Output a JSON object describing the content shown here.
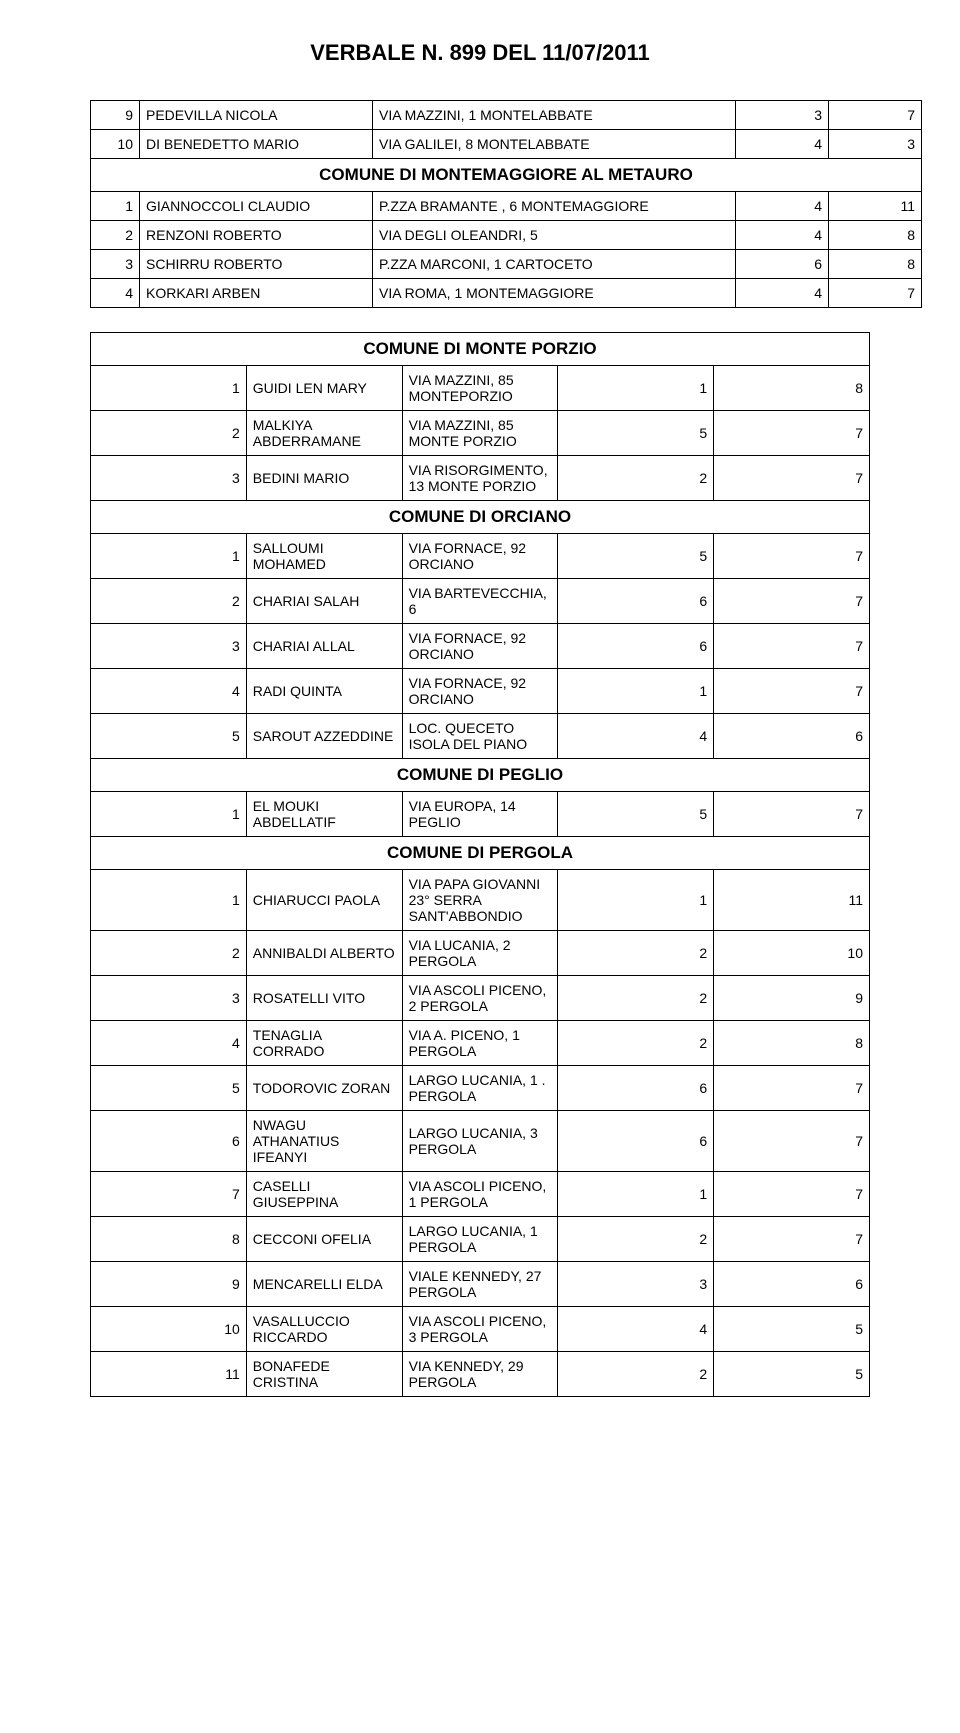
{
  "doc_title": "VERBALE N. 899 DEL 11/07/2011",
  "tables": [
    {
      "rows": [
        {
          "idx": "9",
          "name": "PEDEVILLA NICOLA",
          "addr": "VIA MAZZINI, 1 MONTELABBATE",
          "n1": "3",
          "n2": "7"
        },
        {
          "idx": "10",
          "name": "DI BENEDETTO MARIO",
          "addr": "VIA GALILEI, 8 MONTELABBATE",
          "n1": "4",
          "n2": "3"
        },
        {
          "section": "COMUNE DI MONTEMAGGIORE AL METAURO"
        },
        {
          "idx": "1",
          "name": "GIANNOCCOLI CLAUDIO",
          "addr": "P.ZZA BRAMANTE , 6 MONTEMAGGIORE",
          "n1": "4",
          "n2": "11"
        },
        {
          "idx": "2",
          "name": "RENZONI ROBERTO",
          "addr": "VIA DEGLI OLEANDRI, 5",
          "n1": "4",
          "n2": "8"
        },
        {
          "idx": "3",
          "name": "SCHIRRU ROBERTO",
          "addr": "P.ZZA MARCONI, 1 CARTOCETO",
          "n1": "6",
          "n2": "8"
        },
        {
          "idx": "4",
          "name": "KORKARI ARBEN",
          "addr": "VIA ROMA, 1 MONTEMAGGIORE",
          "n1": "4",
          "n2": "7"
        }
      ]
    },
    {
      "rows": [
        {
          "section": "COMUNE DI MONTE PORZIO"
        },
        {
          "idx": "1",
          "name": "GUIDI LEN MARY",
          "addr": "VIA MAZZINI, 85 MONTEPORZIO",
          "n1": "1",
          "n2": "8"
        },
        {
          "idx": "2",
          "name": "MALKIYA ABDERRAMANE",
          "addr": "VIA MAZZINI, 85 MONTE PORZIO",
          "n1": "5",
          "n2": "7"
        },
        {
          "idx": "3",
          "name": "BEDINI MARIO",
          "addr": "VIA RISORGIMENTO, 13 MONTE PORZIO",
          "n1": "2",
          "n2": "7"
        },
        {
          "section": "COMUNE DI ORCIANO"
        },
        {
          "idx": "1",
          "name": "SALLOUMI MOHAMED",
          "addr": "VIA FORNACE, 92 ORCIANO",
          "n1": "5",
          "n2": "7"
        },
        {
          "idx": "2",
          "name": "CHARIAI SALAH",
          "addr": "VIA BARTEVECCHIA, 6",
          "n1": "6",
          "n2": "7"
        },
        {
          "idx": "3",
          "name": "CHARIAI ALLAL",
          "addr": "VIA FORNACE, 92 ORCIANO",
          "n1": "6",
          "n2": "7"
        },
        {
          "idx": "4",
          "name": "RADI QUINTA",
          "addr": "VIA FORNACE, 92 ORCIANO",
          "n1": "1",
          "n2": "7"
        },
        {
          "idx": "5",
          "name": "SAROUT AZZEDDINE",
          "addr": "LOC. QUECETO ISOLA DEL PIANO",
          "n1": "4",
          "n2": "6"
        },
        {
          "section": "COMUNE DI PEGLIO"
        },
        {
          "idx": "1",
          "name": "EL MOUKI ABDELLATIF",
          "addr": "VIA EUROPA, 14 PEGLIO",
          "n1": "5",
          "n2": "7"
        },
        {
          "section": "COMUNE DI PERGOLA"
        },
        {
          "idx": "1",
          "name": "CHIARUCCI PAOLA",
          "addr": "VIA PAPA GIOVANNI 23° SERRA SANT'ABBONDIO",
          "n1": "1",
          "n2": "11"
        },
        {
          "idx": "2",
          "name": "ANNIBALDI ALBERTO",
          "addr": "VIA LUCANIA, 2 PERGOLA",
          "n1": "2",
          "n2": "10"
        },
        {
          "idx": "3",
          "name": "ROSATELLI VITO",
          "addr": "VIA ASCOLI PICENO, 2 PERGOLA",
          "n1": "2",
          "n2": "9"
        },
        {
          "idx": "4",
          "name": "TENAGLIA CORRADO",
          "addr": "VIA A. PICENO, 1 PERGOLA",
          "n1": "2",
          "n2": "8"
        },
        {
          "idx": "5",
          "name": "TODOROVIC ZORAN",
          "addr": "LARGO LUCANIA, 1 . PERGOLA",
          "n1": "6",
          "n2": "7"
        },
        {
          "idx": "6",
          "name": "NWAGU ATHANATIUS IFEANYI",
          "addr": "LARGO LUCANIA, 3 PERGOLA",
          "n1": "6",
          "n2": "7"
        },
        {
          "idx": "7",
          "name": "CASELLI GIUSEPPINA",
          "addr": "VIA ASCOLI PICENO, 1 PERGOLA",
          "n1": "1",
          "n2": "7"
        },
        {
          "idx": "8",
          "name": "CECCONI OFELIA",
          "addr": "LARGO LUCANIA, 1 PERGOLA",
          "n1": "2",
          "n2": "7"
        },
        {
          "idx": "9",
          "name": "MENCARELLI ELDA",
          "addr": "VIALE KENNEDY, 27 PERGOLA",
          "n1": "3",
          "n2": "6"
        },
        {
          "idx": "10",
          "name": "VASALLUCCIO  RICCARDO",
          "addr": "VIA ASCOLI PICENO, 3 PERGOLA",
          "n1": "4",
          "n2": "5"
        },
        {
          "idx": "11",
          "name": "BONAFEDE CRISTINA",
          "addr": "VIA KENNEDY, 29 PERGOLA",
          "n1": "2",
          "n2": "5"
        }
      ]
    }
  ]
}
